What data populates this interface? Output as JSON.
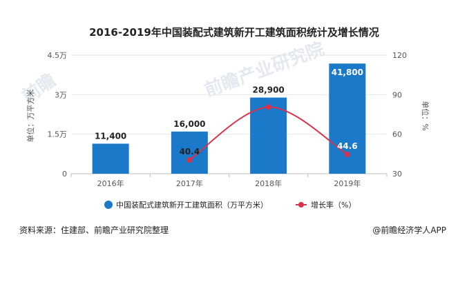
{
  "chart_data": {
    "type": "bar",
    "title": "2016-2019年中国装配式建筑新开工建筑面积统计及增长情况",
    "categories": [
      "2016年",
      "2017年",
      "2018年",
      "2019年"
    ],
    "series": [
      {
        "name": "中国装配式建筑新开工建筑面积（万平方米）",
        "type": "bar",
        "axis": "left",
        "values": [
          11400,
          16000,
          28900,
          41800
        ],
        "labels": [
          "11,400",
          "16,000",
          "28,900",
          "41,800"
        ],
        "color": "#1b79c9"
      },
      {
        "name": "增长率（%）",
        "type": "line",
        "axis": "right",
        "values": [
          null,
          40.4,
          80.6,
          44.6
        ],
        "labels": [
          "",
          "40.4",
          "",
          "44.6"
        ],
        "color": "#d9334b"
      }
    ],
    "left_axis": {
      "label": "单位：万平方米",
      "ylim": [
        0,
        45000
      ],
      "ticks": [
        0,
        15000,
        30000,
        45000
      ],
      "tick_labels": [
        "0",
        "1.5万",
        "3万",
        "4.5万"
      ]
    },
    "right_axis": {
      "label": "单位：%",
      "ylim": [
        30,
        120
      ],
      "ticks": [
        30,
        60,
        90,
        120
      ],
      "tick_labels": [
        "30",
        "60",
        "90",
        "120"
      ]
    },
    "grid": true,
    "legend": "bottom"
  },
  "footer": {
    "source": "资料来源：住建部、前瞻产业研究院整理",
    "credit": "@前瞻经济学人APP"
  },
  "watermark": {
    "left": "前瞻",
    "center": "前瞻产业研究院"
  }
}
